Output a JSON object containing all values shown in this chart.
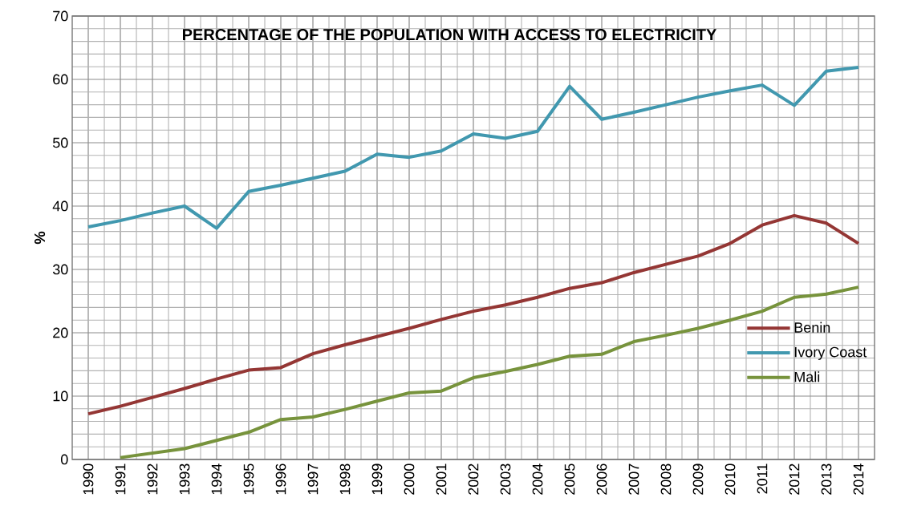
{
  "chart_data": {
    "type": "line",
    "title": "PERCENTAGE OF THE POPULATION WITH ACCESS TO ELECTRICITY",
    "ylabel": "%",
    "categories": [
      "1990",
      "1991",
      "1992",
      "1993",
      "1994",
      "1995",
      "1996",
      "1997",
      "1998",
      "1999",
      "2000",
      "2001",
      "2002",
      "2003",
      "2004",
      "2005",
      "2006",
      "2007",
      "2008",
      "2009",
      "2010",
      "2011",
      "2012",
      "2013",
      "2014"
    ],
    "series": [
      {
        "name": "Benin",
        "color": "#943634",
        "values": [
          7.2,
          8.4,
          9.8,
          11.2,
          12.7,
          14.1,
          14.5,
          16.7,
          18.1,
          19.4,
          20.7,
          22.1,
          23.4,
          24.4,
          25.6,
          27.0,
          27.9,
          29.5,
          30.8,
          32.1,
          34.1,
          37.0,
          38.5,
          37.3,
          34.1
        ]
      },
      {
        "name": "Ivory Coast",
        "color": "#4198af",
        "values": [
          36.7,
          37.7,
          38.9,
          40.0,
          36.5,
          42.3,
          43.3,
          44.4,
          45.5,
          48.2,
          47.7,
          48.7,
          51.4,
          50.7,
          51.8,
          58.9,
          53.7,
          54.8,
          56.0,
          57.2,
          58.2,
          59.1,
          55.9,
          61.3,
          61.9
        ]
      },
      {
        "name": "Mali",
        "color": "#77933c",
        "values": [
          null,
          0.3,
          1.0,
          1.7,
          3.0,
          4.3,
          6.3,
          6.7,
          7.9,
          9.2,
          10.5,
          10.8,
          12.9,
          13.9,
          15.0,
          16.3,
          16.6,
          18.6,
          19.6,
          20.7,
          22.0,
          23.4,
          25.6,
          26.1,
          27.2
        ]
      }
    ],
    "ylim": [
      0,
      70
    ],
    "yticks": [
      0,
      10,
      20,
      30,
      40,
      50,
      60,
      70
    ],
    "grid": true,
    "legend": "bottom right",
    "marker": "none",
    "line_style": "solid"
  }
}
